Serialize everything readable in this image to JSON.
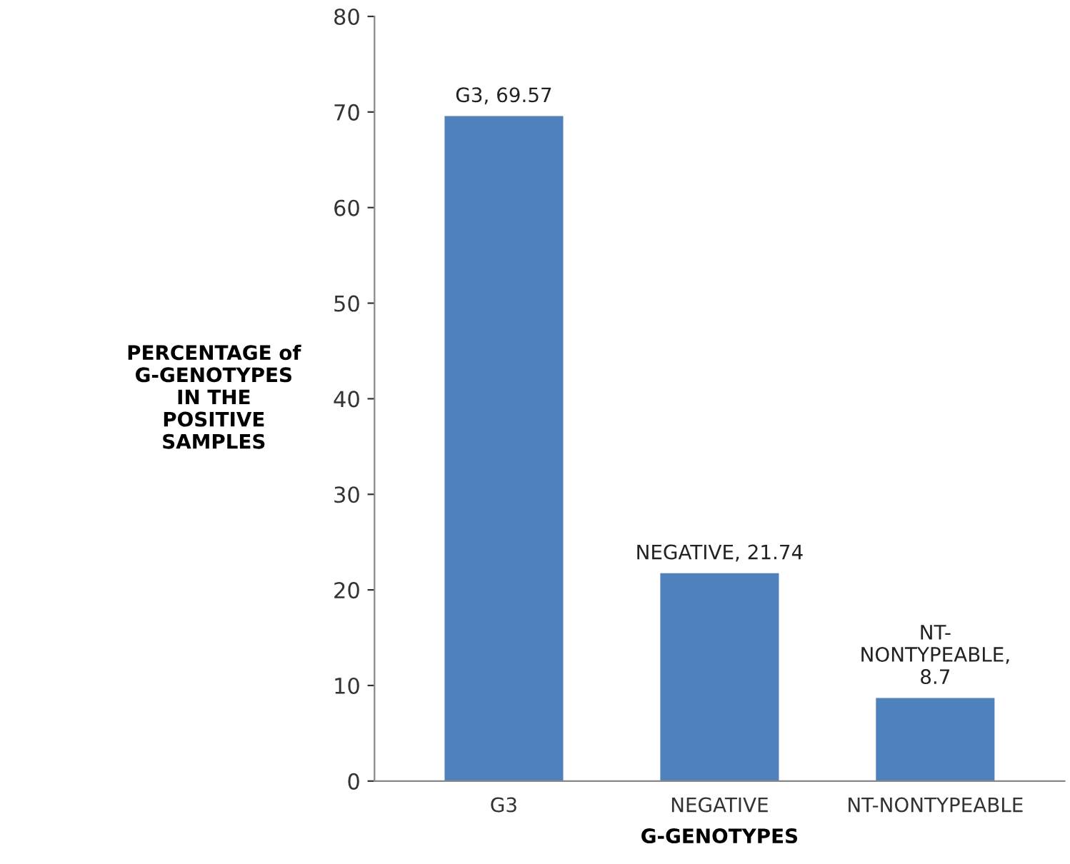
{
  "chart_data": {
    "type": "bar",
    "xlabel": "G-GENOTYPES",
    "ylabel": "PERCENTAGE of\nG-GENOTYPES\nIN THE\nPOSITIVE\nSAMPLES",
    "categories": [
      "G3",
      "NEGATIVE",
      "NT-NONTYPEABLE"
    ],
    "values": [
      69.57,
      21.74,
      8.7
    ],
    "value_labels": [
      "G3, 69.57",
      "NEGATIVE, 21.74",
      "NT-\nNONTYPEABLE,\n8.7"
    ],
    "color": "#4f81bd",
    "ylim": [
      0,
      80
    ],
    "yticks": [
      0,
      10,
      20,
      30,
      40,
      50,
      60,
      70,
      80
    ],
    "grid": false,
    "legend": false
  }
}
